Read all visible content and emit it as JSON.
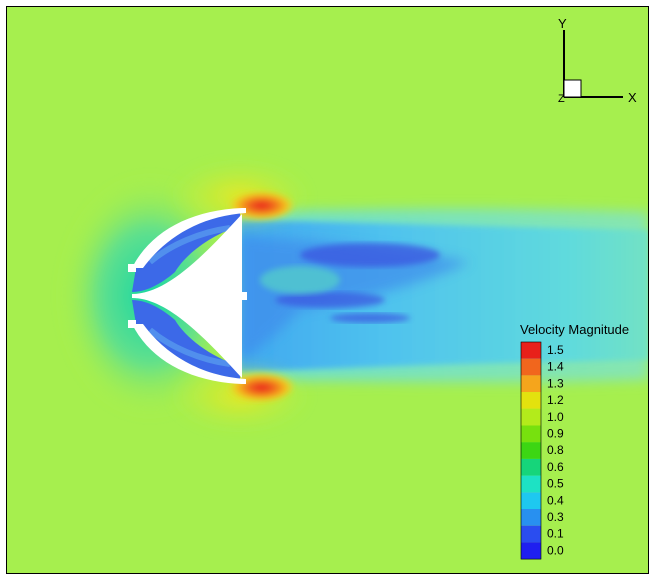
{
  "axes": {
    "y_label": "Y",
    "x_label": "X",
    "z_label": "Z"
  },
  "legend": {
    "title": "Velocity Magnitude",
    "levels": [
      {
        "label": "1.5",
        "color": "#e8201a"
      },
      {
        "label": "1.4",
        "color": "#f1661d"
      },
      {
        "label": "1.3",
        "color": "#f5a51c"
      },
      {
        "label": "1.2",
        "color": "#e3e20e"
      },
      {
        "label": "1.0",
        "color": "#b3eb1b"
      },
      {
        "label": "0.9",
        "color": "#77e10e"
      },
      {
        "label": "0.8",
        "color": "#3cd613"
      },
      {
        "label": "0.6",
        "color": "#16d57a"
      },
      {
        "label": "0.5",
        "color": "#1de2c4"
      },
      {
        "label": "0.4",
        "color": "#1ec8f0"
      },
      {
        "label": "0.3",
        "color": "#2890f0"
      },
      {
        "label": "0.1",
        "color": "#2a4df0"
      },
      {
        "label": "0.0",
        "color": "#1f1ff0"
      }
    ]
  },
  "colors": {
    "freestream": "#a6ef4e",
    "wake": "#5ad6e8",
    "recirculation": "#3c69e8",
    "peak": "#e8201a",
    "body": "#ffffff"
  }
}
